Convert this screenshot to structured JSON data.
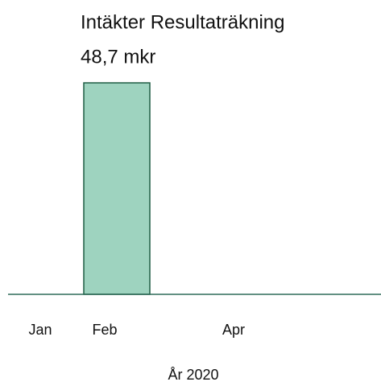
{
  "chart_data": {
    "type": "bar",
    "title": "Intäkter Resultaträkning",
    "categories": [
      "Jan",
      "Feb",
      null,
      "Apr"
    ],
    "values": [
      null,
      48.7,
      null,
      null
    ],
    "value_labels": [
      null,
      "48,7 mkr",
      null,
      null
    ],
    "xlabel": "År 2020",
    "color": "#9ed3bf",
    "edge_color": "#1f5c43",
    "ylim": [
      0,
      50
    ]
  }
}
